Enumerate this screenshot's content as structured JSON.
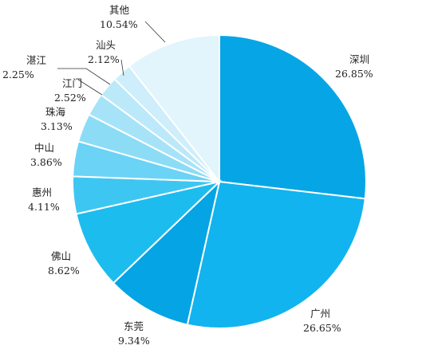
{
  "chart_data": {
    "type": "pie",
    "title": "",
    "start_angle_deg": 0,
    "direction": "clockwise",
    "slices": [
      {
        "label": "深圳",
        "value_text": "26.85%",
        "value": 26.85,
        "color": "#06a6e6"
      },
      {
        "label": "广州",
        "value_text": "26.65%",
        "value": 26.65,
        "color": "#11b4ee"
      },
      {
        "label": "东莞",
        "value_text": "9.34%",
        "value": 9.34,
        "color": "#05a4e4"
      },
      {
        "label": "佛山",
        "value_text": "8.62%",
        "value": 8.62,
        "color": "#1cbcef"
      },
      {
        "label": "惠州",
        "value_text": "4.11%",
        "value": 4.11,
        "color": "#3ec6f2"
      },
      {
        "label": "中山",
        "value_text": "3.86%",
        "value": 3.86,
        "color": "#6bd3f5"
      },
      {
        "label": "珠海",
        "value_text": "3.13%",
        "value": 3.13,
        "color": "#8cdcf6"
      },
      {
        "label": "江门",
        "value_text": "2.52%",
        "value": 2.52,
        "color": "#a6e3f8"
      },
      {
        "label": "湛江",
        "value_text": "2.25%",
        "value": 2.25,
        "color": "#bbe9f9"
      },
      {
        "label": "汕头",
        "value_text": "2.12%",
        "value": 2.12,
        "color": "#cdeefa"
      },
      {
        "label": "其他",
        "value_text": "10.54%",
        "value": 10.54,
        "color": "#e2f4fc"
      }
    ]
  }
}
